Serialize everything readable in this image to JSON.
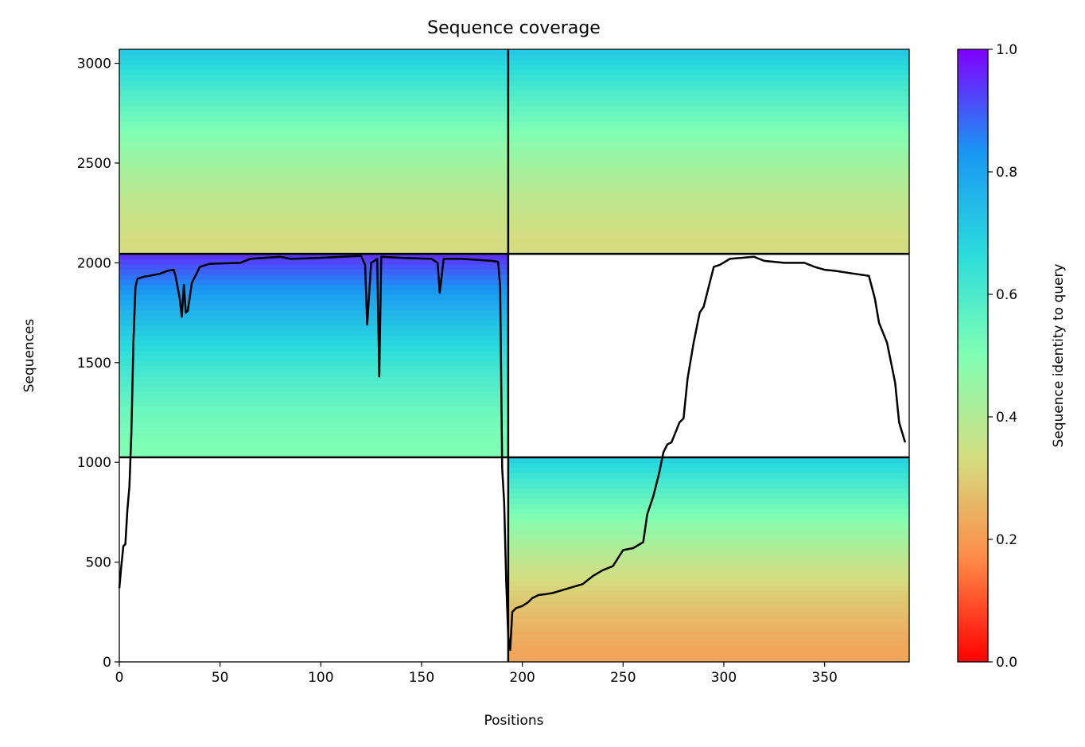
{
  "chart_data": {
    "type": "heatmap",
    "title": "Sequence coverage",
    "xlabel": "Positions",
    "ylabel": "Sequences",
    "xlim": [
      0,
      392
    ],
    "ylim": [
      0,
      3070
    ],
    "x_ticks": [
      "0",
      "50",
      "100",
      "150",
      "200",
      "250",
      "300",
      "350"
    ],
    "y_ticks": [
      "0",
      "500",
      "1000",
      "1500",
      "2000",
      "2500",
      "3000"
    ],
    "colorbar": {
      "label": "Sequence identity to query",
      "range": [
        0,
        1
      ],
      "ticks": [
        "0.0",
        "0.2",
        "0.4",
        "0.6",
        "0.8",
        "1.0"
      ],
      "colormap": "rainbow_r",
      "stops": [
        "#ff0000",
        "#ff8a48",
        "#d4dd80",
        "#80ffb4",
        "#2adcdc",
        "#1996f3",
        "#8000ff"
      ]
    },
    "dividers": {
      "vertical_at_position": 193,
      "horizontal_left_at_sequence": [
        1025,
        2045
      ],
      "horizontal_right_at_sequence": [
        1025,
        2045
      ]
    },
    "blocks": [
      {
        "name": "bottom-right",
        "x": [
          193,
          392
        ],
        "y": [
          0,
          1025
        ],
        "identity_bottom": 0.22,
        "identity_top": 0.7
      },
      {
        "name": "middle-left",
        "x": [
          0,
          193
        ],
        "y": [
          1025,
          2045
        ],
        "identity_bottom": 0.5,
        "identity_top": 0.95
      },
      {
        "name": "top-left",
        "x": [
          0,
          193
        ],
        "y": [
          2045,
          3070
        ],
        "identity_bottom": 0.33,
        "identity_top": 0.72
      },
      {
        "name": "top-right",
        "x": [
          193,
          392
        ],
        "y": [
          2045,
          3070
        ],
        "identity_bottom": 0.33,
        "identity_top": 0.72
      }
    ],
    "coverage_line": {
      "color": "#000000",
      "points": [
        [
          0,
          370
        ],
        [
          1,
          480
        ],
        [
          2,
          580
        ],
        [
          3,
          590
        ],
        [
          4,
          760
        ],
        [
          5,
          880
        ],
        [
          6,
          1150
        ],
        [
          7,
          1600
        ],
        [
          8,
          1880
        ],
        [
          9,
          1920
        ],
        [
          12,
          1930
        ],
        [
          15,
          1935
        ],
        [
          20,
          1945
        ],
        [
          24,
          1960
        ],
        [
          27,
          1965
        ],
        [
          28,
          1930
        ],
        [
          30,
          1820
        ],
        [
          31,
          1730
        ],
        [
          32,
          1890
        ],
        [
          33,
          1750
        ],
        [
          34,
          1760
        ],
        [
          36,
          1900
        ],
        [
          40,
          1980
        ],
        [
          45,
          1995
        ],
        [
          60,
          2000
        ],
        [
          65,
          2020
        ],
        [
          80,
          2030
        ],
        [
          85,
          2020
        ],
        [
          100,
          2025
        ],
        [
          110,
          2030
        ],
        [
          120,
          2035
        ],
        [
          122,
          1990
        ],
        [
          123,
          1690
        ],
        [
          125,
          2000
        ],
        [
          128,
          2020
        ],
        [
          129,
          1430
        ],
        [
          130,
          2030
        ],
        [
          140,
          2025
        ],
        [
          155,
          2020
        ],
        [
          158,
          2000
        ],
        [
          159,
          1850
        ],
        [
          161,
          2020
        ],
        [
          170,
          2020
        ],
        [
          185,
          2010
        ],
        [
          188,
          2005
        ],
        [
          189,
          1880
        ],
        [
          190,
          970
        ],
        [
          191,
          800
        ],
        [
          192,
          400
        ],
        [
          193,
          130
        ],
        [
          194,
          60
        ],
        [
          195,
          250
        ],
        [
          197,
          270
        ],
        [
          200,
          280
        ],
        [
          203,
          300
        ],
        [
          205,
          320
        ],
        [
          208,
          335
        ],
        [
          212,
          340
        ],
        [
          215,
          345
        ],
        [
          220,
          360
        ],
        [
          225,
          375
        ],
        [
          230,
          390
        ],
        [
          235,
          430
        ],
        [
          240,
          460
        ],
        [
          245,
          480
        ],
        [
          250,
          560
        ],
        [
          255,
          570
        ],
        [
          260,
          600
        ],
        [
          262,
          740
        ],
        [
          265,
          830
        ],
        [
          268,
          950
        ],
        [
          270,
          1050
        ],
        [
          272,
          1090
        ],
        [
          274,
          1100
        ],
        [
          276,
          1150
        ],
        [
          278,
          1200
        ],
        [
          280,
          1220
        ],
        [
          282,
          1420
        ],
        [
          285,
          1600
        ],
        [
          288,
          1750
        ],
        [
          290,
          1780
        ],
        [
          293,
          1900
        ],
        [
          295,
          1980
        ],
        [
          298,
          1990
        ],
        [
          303,
          2020
        ],
        [
          315,
          2030
        ],
        [
          320,
          2010
        ],
        [
          330,
          2000
        ],
        [
          340,
          2000
        ],
        [
          345,
          1980
        ],
        [
          350,
          1965
        ],
        [
          355,
          1960
        ],
        [
          365,
          1945
        ],
        [
          372,
          1935
        ],
        [
          375,
          1820
        ],
        [
          377,
          1700
        ],
        [
          381,
          1600
        ],
        [
          383,
          1500
        ],
        [
          385,
          1400
        ],
        [
          387,
          1200
        ],
        [
          390,
          1100
        ]
      ]
    }
  }
}
